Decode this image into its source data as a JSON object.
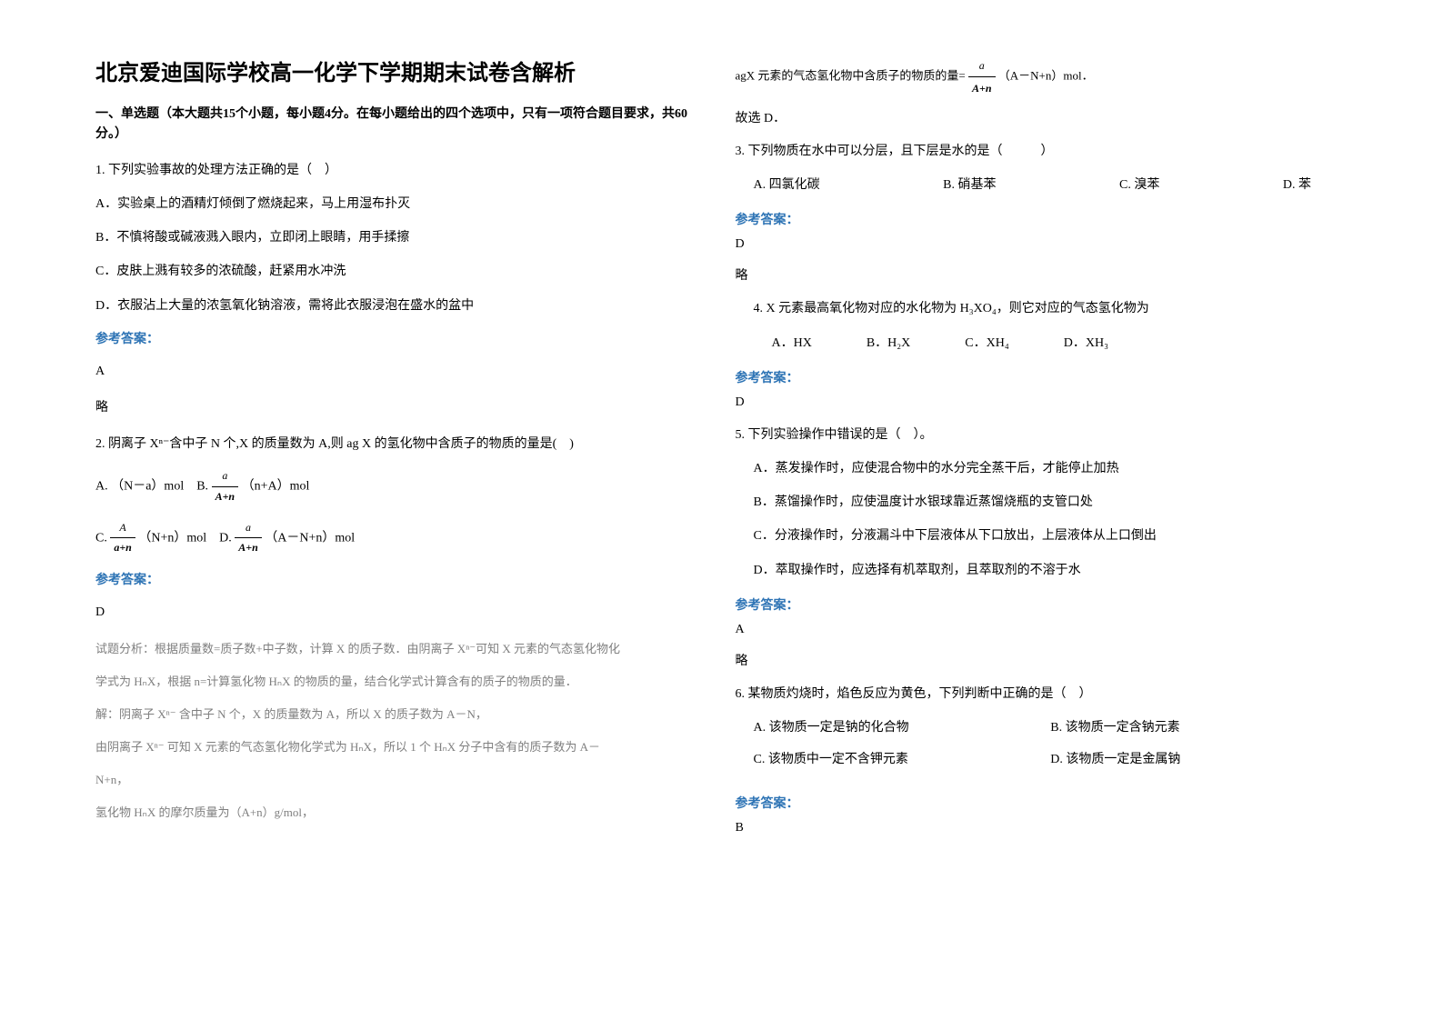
{
  "title": "北京爱迪国际学校高一化学下学期期末试卷含解析",
  "sectionHeader": "一、单选题（本大题共15个小题，每小题4分。在每小题给出的四个选项中，只有一项符合题目要求，共60分。）",
  "q1": {
    "stem": "1. 下列实验事故的处理方法正确的是（　）",
    "optA": "A．实验桌上的酒精灯倾倒了燃烧起来，马上用湿布扑灭",
    "optB": "B．不慎将酸或碱液溅入眼内，立即闭上眼睛，用手揉擦",
    "optC": "C．皮肤上溅有较多的浓硫酸，赶紧用水冲洗",
    "optD": "D．衣服沾上大量的浓氢氧化钠溶液，需将此衣服浸泡在盛水的盆中",
    "answerLabel": "参考答案：",
    "answer": "A",
    "note": "略"
  },
  "q2": {
    "stem": "2. 阴离子 Xⁿ⁻含中子 N 个,X 的质量数为 A,则 ag X 的氢化物中含质子的物质的量是(　)",
    "optA_prefix": "A. （N－a）mol　B. ",
    "optA_suffix": " （n+A）mol",
    "optC_prefix": "C. ",
    "optC_mid": " （N+n）mol　D. ",
    "optC_suffix": " （A－N+n）mol",
    "answerLabel": "参考答案：",
    "answer": "D",
    "exp1": "试题分析：根据质量数=质子数+中子数，计算 X 的质子数．由阴离子 Xⁿ⁻可知 X 元素的气态氢化物化",
    "exp2": "学式为 HₙX，根据 n=计算氢化物 HₙX 的物质的量，结合化学式计算含有的质子的物质的量．",
    "exp3": "解：阴离子 Xⁿ⁻ 含中子 N 个，X 的质量数为 A，所以 X 的质子数为 A－N，",
    "exp4": "由阴离子 Xⁿ⁻ 可知 X 元素的气态氢化物化学式为 HₙX，所以 1 个 HₙX 分子中含有的质子数为 A－",
    "exp5": "N+n，",
    "exp6": "氢化物 HₙX 的摩尔质量为（A+n）g/mol，",
    "exp7_prefix": "agX 元素的气态氢化物中含质子的物质的量=",
    "exp7_suffix": " （A－N+n）mol．",
    "exp8": "故选 D．"
  },
  "q3": {
    "stem": "3. 下列物质在水中可以分层，且下层是水的是（　　　）",
    "optA": "A. 四氯化碳",
    "optB": "B. 硝基苯",
    "optC": "C. 溴苯",
    "optD": "D. 苯",
    "answerLabel": "参考答案：",
    "answer": "D",
    "note": "略"
  },
  "q4": {
    "stem": "4. X 元素最高氧化物对应的水化物为 H₃XO₄，则它对应的气态氢化物为",
    "optA": "A．HX",
    "optB": "B．H₂X",
    "optC": "C．XH₄",
    "optD": "D．XH₃",
    "answerLabel": "参考答案：",
    "answer": "D"
  },
  "q5": {
    "stem": "5. 下列实验操作中错误的是（　）。",
    "optA": "A．蒸发操作时，应使混合物中的水分完全蒸干后，才能停止加热",
    "optB": "B．蒸馏操作时，应使温度计水银球靠近蒸馏烧瓶的支管口处",
    "optC": "C．分液操作时，分液漏斗中下层液体从下口放出，上层液体从上口倒出",
    "optD": "D．萃取操作时，应选择有机萃取剂，且萃取剂的不溶于水",
    "answerLabel": "参考答案：",
    "answer": "A",
    "note": "略"
  },
  "q6": {
    "stem": "6. 某物质灼烧时，焰色反应为黄色，下列判断中正确的是（　）",
    "optA": "A. 该物质一定是钠的化合物",
    "optB": "B. 该物质一定含钠元素",
    "optC": "C. 该物质中一定不含钾元素",
    "optD": "D. 该物质一定是金属钠",
    "answerLabel": "参考答案：",
    "answer": "B"
  },
  "frac1": {
    "num": "a",
    "den": "A+n"
  },
  "frac2": {
    "num": "A",
    "den": "a+n"
  },
  "frac3": {
    "num": "a",
    "den": "A+n"
  },
  "frac4": {
    "num": "a",
    "den": "A+n"
  }
}
